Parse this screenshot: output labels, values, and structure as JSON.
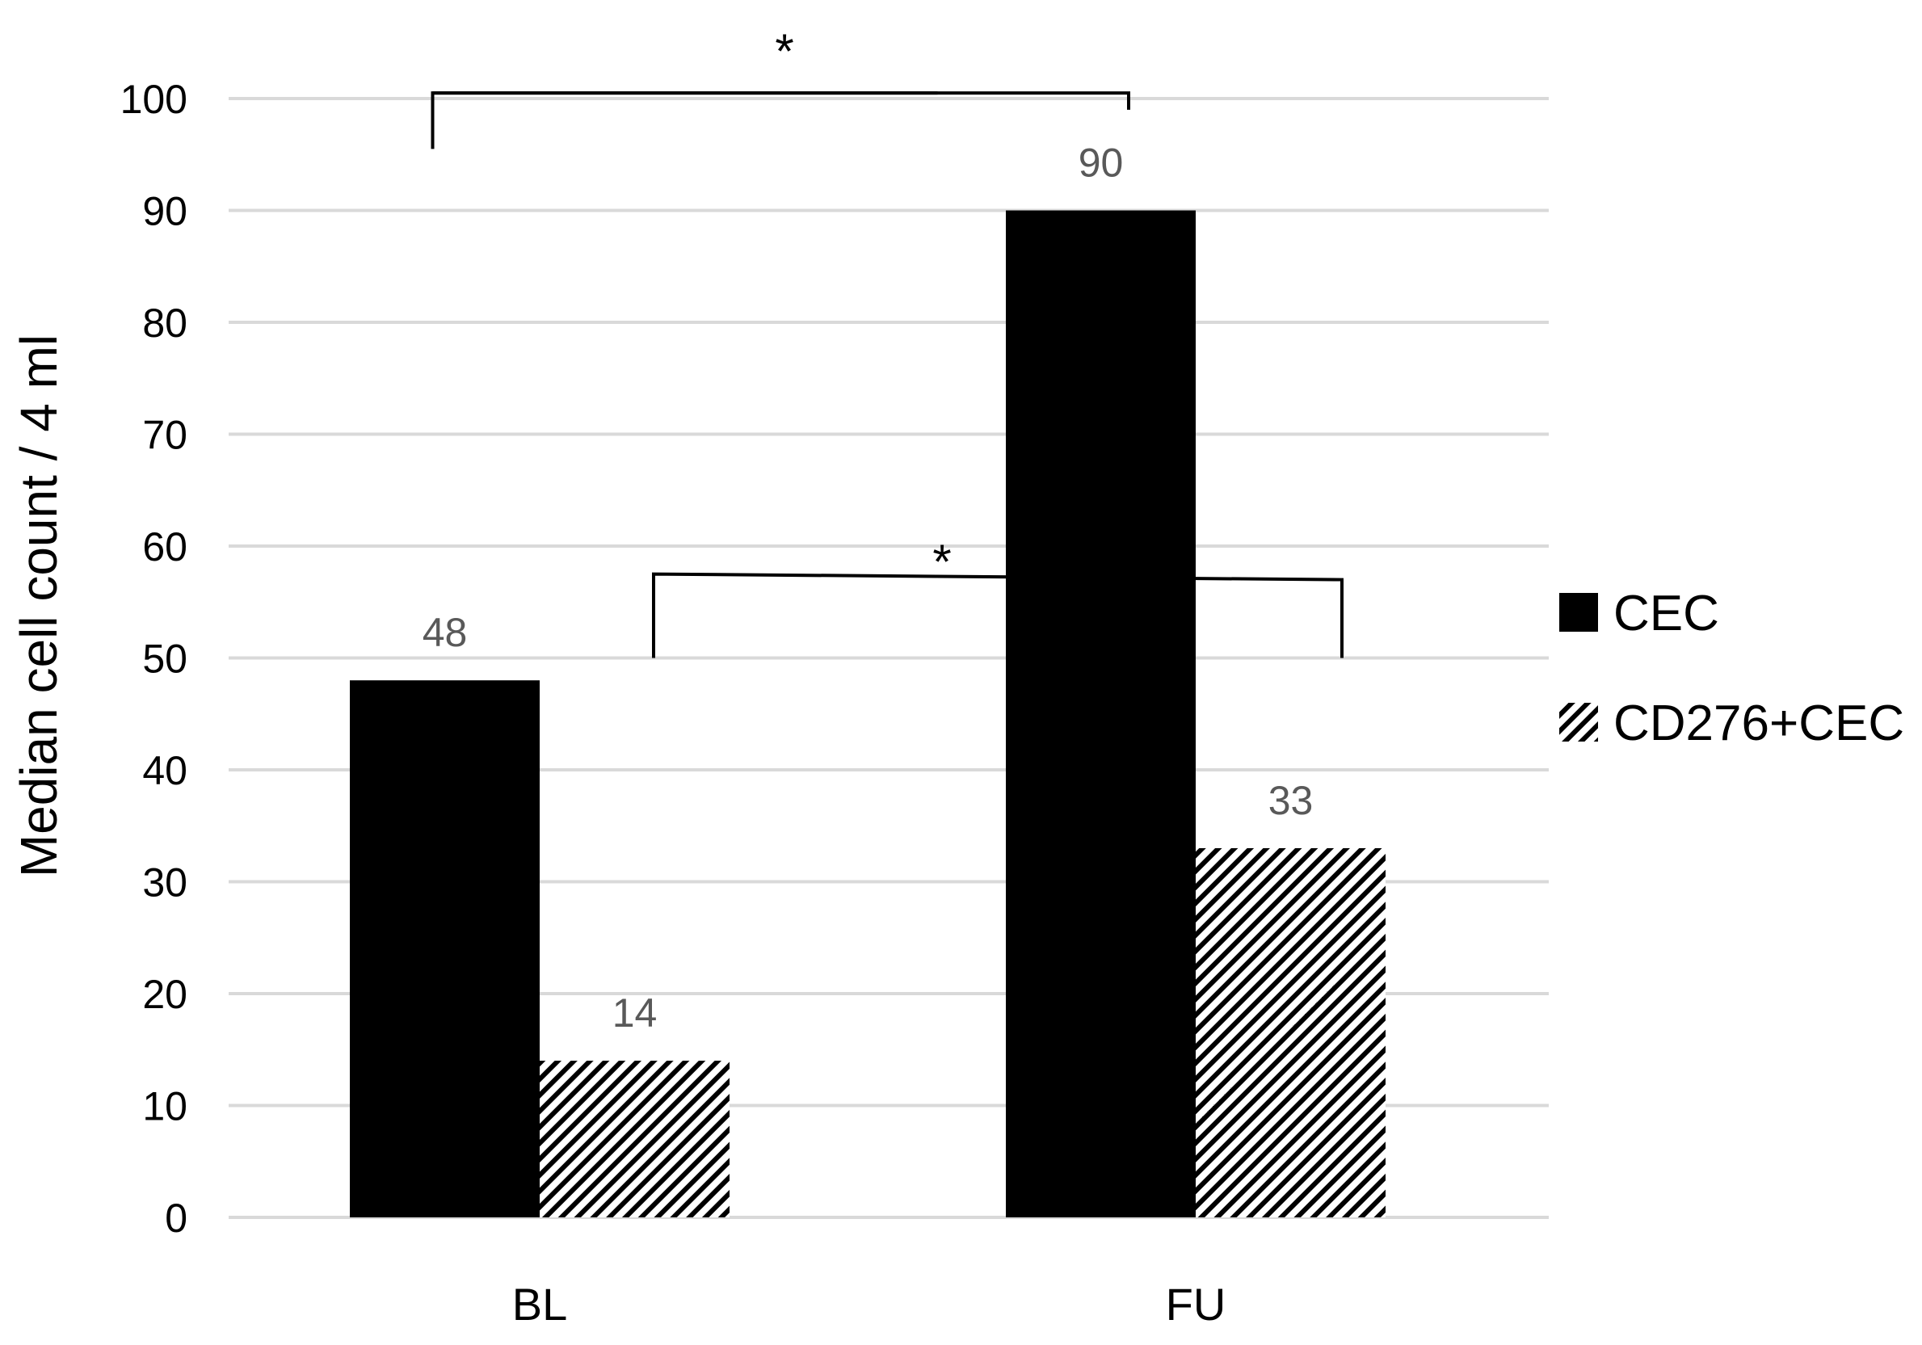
{
  "chart_data": {
    "type": "bar",
    "categories": [
      "BL",
      "FU"
    ],
    "series": [
      {
        "name": "CEC",
        "values": [
          48,
          90
        ],
        "pattern": "solid",
        "color": "#000000"
      },
      {
        "name": "CD276+CEC",
        "values": [
          14,
          33
        ],
        "pattern": "hatch",
        "color": "#000000"
      }
    ],
    "data_labels": [
      "48",
      "90",
      "14",
      "33"
    ],
    "ylabel": "Median cell count / 4 ml",
    "xlabel": "",
    "ylim": [
      0,
      100
    ],
    "yticks": [
      0,
      10,
      20,
      30,
      40,
      50,
      60,
      70,
      80,
      90,
      100
    ],
    "ytick_labels": [
      "0",
      "10",
      "20",
      "30",
      "40",
      "50",
      "60",
      "70",
      "80",
      "90",
      "100"
    ],
    "grid": true,
    "grid_color": "#d9d9d9",
    "data_label_color": "#595959",
    "legend_position": "right",
    "annotations": [
      {
        "text": "*",
        "type": "significance-bracket",
        "compares": "CEC BL vs CEC FU"
      },
      {
        "text": "*",
        "type": "significance-bracket",
        "compares": "CD276+CEC BL vs CD276+CEC FU"
      }
    ]
  }
}
